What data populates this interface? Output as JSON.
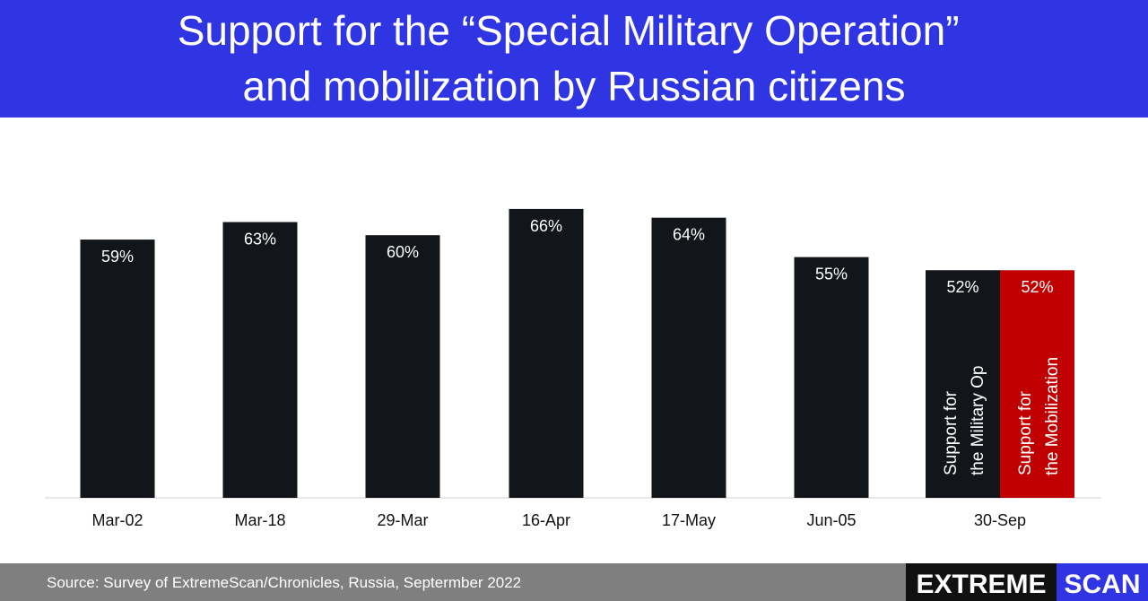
{
  "chart_data": {
    "type": "bar",
    "title": "Support for the “Special Military Operation” and mobilization by Russian citizens",
    "categories": [
      "Mar-02",
      "Mar-18",
      "29-Mar",
      "16-Apr",
      "17-May",
      "Jun-05",
      "30-Sep"
    ],
    "series": [
      {
        "name": "Support for the Military Op",
        "color": "#121519",
        "values": [
          59,
          63,
          60,
          66,
          64,
          55,
          52
        ],
        "value_labels": [
          "59%",
          "63%",
          "60%",
          "66%",
          "64%",
          "55%",
          "52%"
        ]
      },
      {
        "name": "Support for the Mobilization",
        "color": "#c00000",
        "values": [
          null,
          null,
          null,
          null,
          null,
          null,
          52
        ],
        "value_labels": [
          null,
          null,
          null,
          null,
          null,
          null,
          "52%"
        ]
      }
    ],
    "source": "Source: Survey of ExtremeScan/Chronicles, Russia, Septermber 2022",
    "logo": {
      "left": "EXTREME",
      "right": "SCAN"
    }
  }
}
